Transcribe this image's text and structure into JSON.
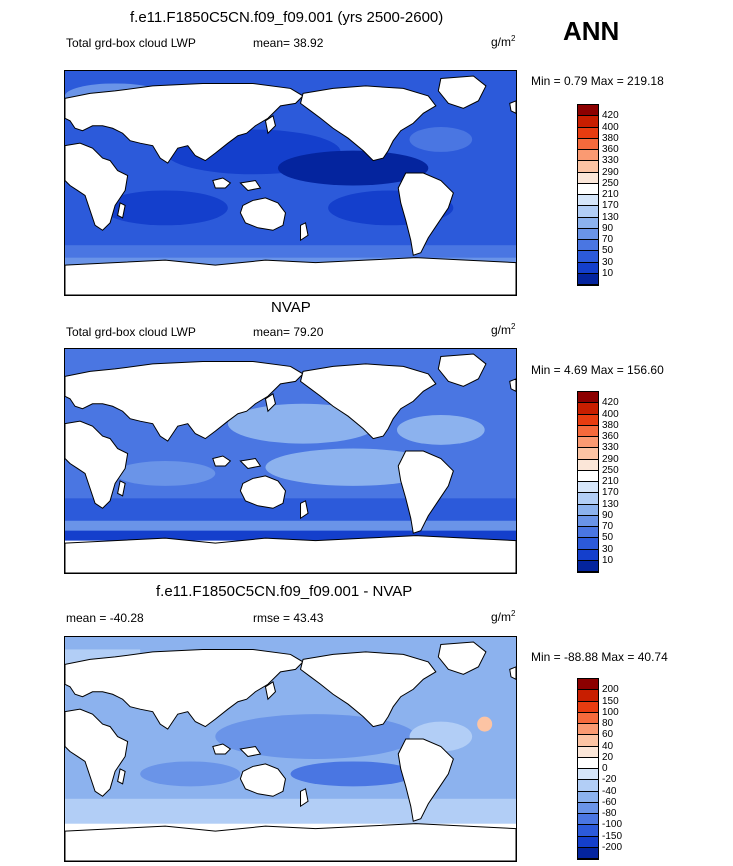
{
  "season": "ANN",
  "panels": [
    {
      "title": "f.e11.F1850C5CN.f09_f09.001 (yrs 2500-2600)",
      "left_label": "Total grd-box cloud LWP",
      "center_label": "mean=  38.92",
      "unit_base": "g/m",
      "unit_exp": "2",
      "minmax": "Min =   0.79 Max = 219.18",
      "levels": [
        "420",
        "400",
        "380",
        "360",
        "330",
        "290",
        "250",
        "210",
        "170",
        "130",
        "90",
        "70",
        "50",
        "30",
        "10"
      ],
      "colors": [
        "#8c0000",
        "#c81e00",
        "#e83c10",
        "#f56a3c",
        "#fa9a72",
        "#fcc4a4",
        "#fbe6d8",
        "#ffffff",
        "#d6e6fa",
        "#b2cef6",
        "#8cb2ee",
        "#6a94e8",
        "#4a76e2",
        "#2c5ada",
        "#143fcc",
        "#04249e"
      ]
    },
    {
      "title": "NVAP",
      "left_label": "Total grd-box cloud LWP",
      "center_label": "mean=  79.20",
      "unit_base": "g/m",
      "unit_exp": "2",
      "minmax": "Min =   4.69 Max = 156.60",
      "levels": [
        "420",
        "400",
        "380",
        "360",
        "330",
        "290",
        "250",
        "210",
        "170",
        "130",
        "90",
        "70",
        "50",
        "30",
        "10"
      ],
      "colors": [
        "#8c0000",
        "#c81e00",
        "#e83c10",
        "#f56a3c",
        "#fa9a72",
        "#fcc4a4",
        "#fbe6d8",
        "#ffffff",
        "#d6e6fa",
        "#b2cef6",
        "#8cb2ee",
        "#6a94e8",
        "#4a76e2",
        "#2c5ada",
        "#143fcc",
        "#04249e"
      ]
    },
    {
      "title": "f.e11.F1850C5CN.f09_f09.001 - NVAP",
      "left_label": "mean = -40.28",
      "center_label": "rmse =  43.43",
      "unit_base": "g/m",
      "unit_exp": "2",
      "minmax": "Min = -88.88 Max =  40.74",
      "levels": [
        "200",
        "150",
        "100",
        "80",
        "60",
        "40",
        "20",
        "0",
        "-20",
        "-40",
        "-60",
        "-80",
        "-100",
        "-150",
        "-200"
      ],
      "colors": [
        "#8c0000",
        "#c81e00",
        "#e83c10",
        "#f56a3c",
        "#fa9a72",
        "#fcc4a4",
        "#fbe6d8",
        "#ffffff",
        "#d6e6fa",
        "#b2cef6",
        "#8cb2ee",
        "#6a94e8",
        "#4a76e2",
        "#2c5ada",
        "#143fcc",
        "#04249e"
      ]
    }
  ],
  "chart_data": [
    {
      "type": "heatmap",
      "title": "f.e11.F1850C5CN.f09_f09.001 (yrs 2500-2600)",
      "variable": "Total grd-box cloud LWP",
      "units": "g/m2",
      "mean": 38.92,
      "min": 0.79,
      "max": 219.18,
      "colorbar_levels": [
        10,
        30,
        50,
        70,
        90,
        130,
        170,
        210,
        250,
        290,
        330,
        360,
        380,
        400,
        420
      ],
      "ocean_fill": "#2c5ada"
    },
    {
      "type": "heatmap",
      "title": "NVAP",
      "variable": "Total grd-box cloud LWP",
      "units": "g/m2",
      "mean": 79.2,
      "min": 4.69,
      "max": 156.6,
      "colorbar_levels": [
        10,
        30,
        50,
        70,
        90,
        130,
        170,
        210,
        250,
        290,
        330,
        360,
        380,
        400,
        420
      ],
      "ocean_fill": "#4a76e2"
    },
    {
      "type": "heatmap",
      "title": "f.e11.F1850C5CN.f09_f09.001 - NVAP",
      "units": "g/m2",
      "mean": -40.28,
      "rmse": 43.43,
      "min": -88.88,
      "max": 40.74,
      "colorbar_levels": [
        -200,
        -150,
        -100,
        -80,
        -60,
        -40,
        -20,
        0,
        20,
        40,
        60,
        80,
        100,
        150,
        200
      ],
      "ocean_fill": "#8cb2ee"
    }
  ]
}
